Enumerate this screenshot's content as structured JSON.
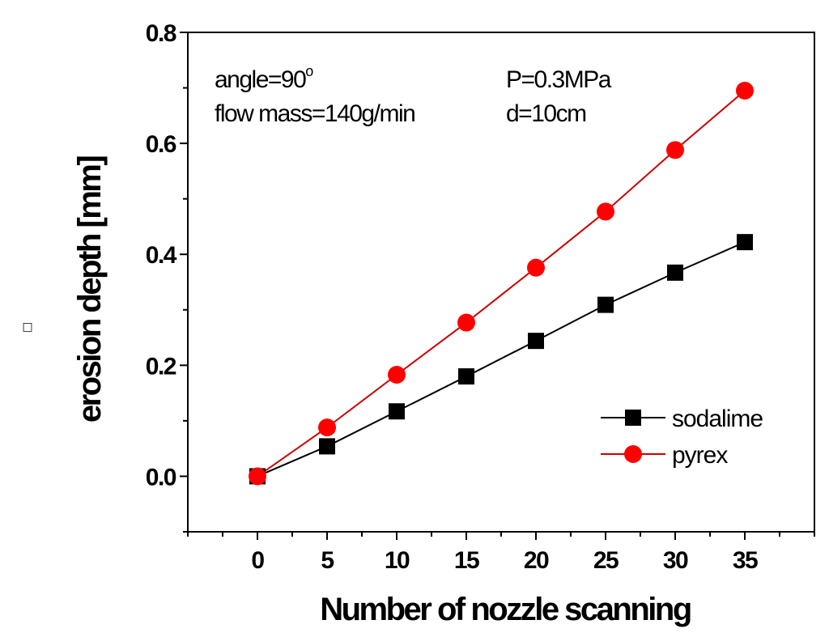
{
  "chart_data": {
    "type": "line",
    "xlabel": "Number of nozzle scanning",
    "ylabel": "erosion depth [mm]",
    "ylabel_marker": "□",
    "xlim": [
      -5,
      40
    ],
    "ylim": [
      -0.1,
      0.8
    ],
    "xticks": [
      0,
      5,
      10,
      15,
      20,
      25,
      30,
      35
    ],
    "yticks": [
      0.0,
      0.2,
      0.4,
      0.6,
      0.8
    ],
    "xtick_labels": [
      "0",
      "5",
      "10",
      "15",
      "20",
      "25",
      "30",
      "35"
    ],
    "ytick_labels": [
      "0.0",
      "0.2",
      "0.4",
      "0.6",
      "0.8"
    ],
    "grid": false,
    "legend_position": "lower-right",
    "annotations": [
      {
        "text": "angle=90",
        "sup": "o"
      },
      {
        "text": "P=0.3MPa"
      },
      {
        "text": "flow mass=140g/min"
      },
      {
        "text": "d=10cm"
      }
    ],
    "x": [
      0,
      5,
      10,
      15,
      20,
      25,
      30,
      35
    ],
    "series": [
      {
        "name": "sodalime",
        "color": "#000000",
        "marker": "square",
        "line_color": "#000000",
        "values": [
          0.0,
          0.054,
          0.117,
          0.18,
          0.244,
          0.309,
          0.367,
          0.422
        ]
      },
      {
        "name": "pyrex",
        "color": "#ff0000",
        "marker": "circle",
        "line_color": "#cc0000",
        "values": [
          0.0,
          0.088,
          0.183,
          0.277,
          0.376,
          0.477,
          0.588,
          0.695
        ]
      }
    ]
  }
}
